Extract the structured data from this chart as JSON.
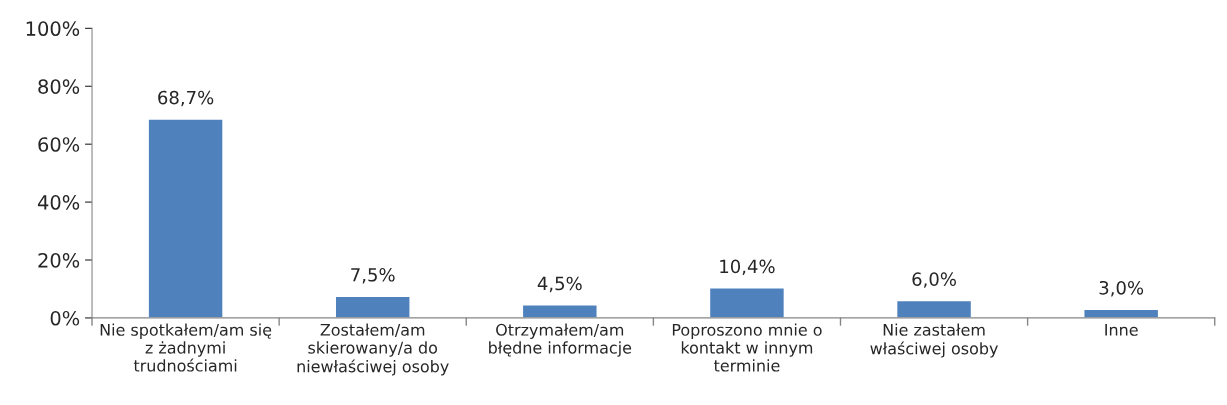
{
  "chart_data": {
    "type": "bar",
    "categories": [
      "Nie spotkałem/am się\nz żadnymi\ntrudnościami",
      "Zostałem/am\nskierowany/a do\nniewłaściwej osoby",
      "Otrzymałem/am\nbłędne informacje",
      "Poproszono mnie o\nkontakt w innym\nterminie",
      "Nie zastałem\nwłaściwej osoby",
      "Inne"
    ],
    "values": [
      68.7,
      7.5,
      4.5,
      10.4,
      6.0,
      3.0
    ],
    "value_labels": [
      "68,7%",
      "7,5%",
      "4,5%",
      "10,4%",
      "6,0%",
      "3,0%"
    ],
    "color": "#4f81bd",
    "ylim": [
      0,
      100
    ],
    "yticks": [
      {
        "value": 0,
        "label": "0%"
      },
      {
        "value": 20,
        "label": "20%"
      },
      {
        "value": 40,
        "label": "40%"
      },
      {
        "value": 60,
        "label": "60%"
      },
      {
        "value": 80,
        "label": "80%"
      },
      {
        "value": 100,
        "label": "100%"
      }
    ],
    "grid": false,
    "legend": false
  }
}
